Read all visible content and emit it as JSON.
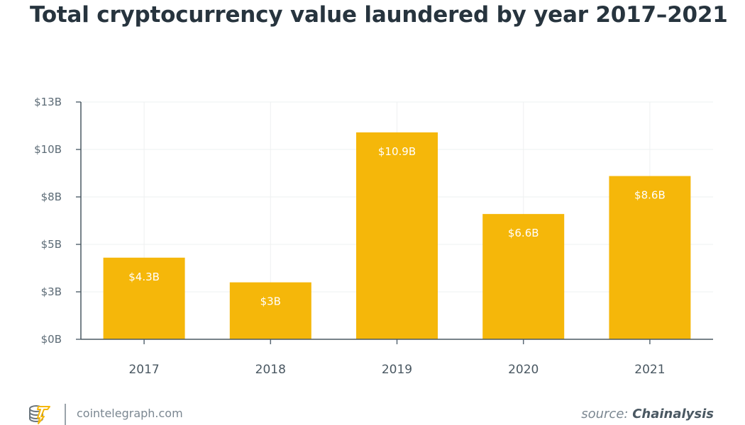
{
  "chart_data": {
    "type": "bar",
    "title": "Total cryptocurrency value laundered by year 2017–2021",
    "categories": [
      "2017",
      "2018",
      "2019",
      "2020",
      "2021"
    ],
    "values": [
      4.3,
      3.0,
      10.9,
      6.6,
      8.6
    ],
    "data_labels": [
      "$4.3B",
      "$3B",
      "$10.9B",
      "$6.6B",
      "$8.6B"
    ],
    "ylim": [
      0,
      12.5
    ],
    "y_ticks": [
      0,
      2.5,
      5,
      7.5,
      10,
      12.5
    ],
    "y_tick_labels": [
      "$0B",
      "$3B",
      "$5B",
      "$8B",
      "$10B",
      "$13B"
    ],
    "xlabel": "",
    "ylabel": "",
    "grid": true,
    "bar_color": "#F5B70A"
  },
  "footer": {
    "site": "cointelegraph.com",
    "source_prefix": "source: ",
    "source_name": "Chainalysis"
  }
}
